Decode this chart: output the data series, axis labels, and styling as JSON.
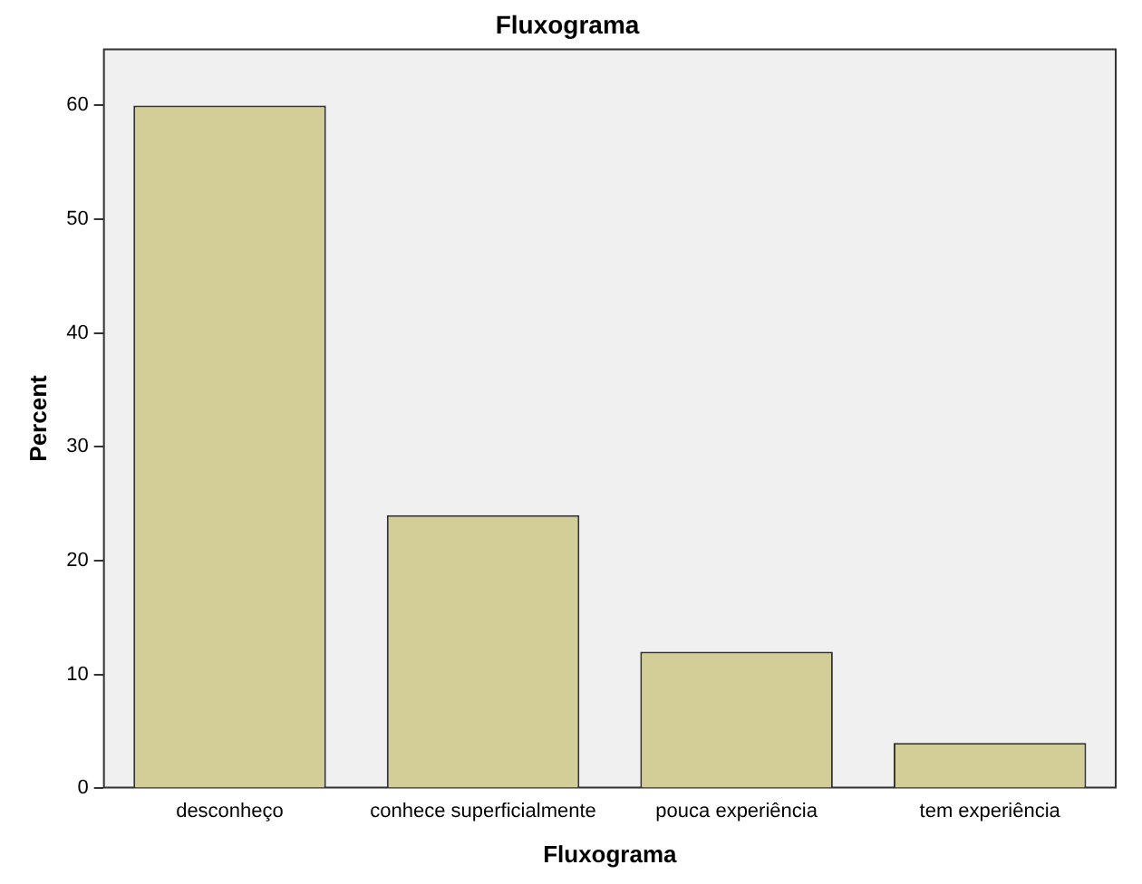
{
  "chart_data": {
    "type": "bar",
    "title": "Fluxograma",
    "xlabel": "Fluxograma",
    "ylabel": "Percent",
    "categories": [
      "desconheço",
      "conhece superficialmente",
      "pouca experiência",
      "tem experiência"
    ],
    "values": [
      60,
      24,
      12,
      4
    ],
    "color": "#d3ce97",
    "ylim": [
      0,
      65
    ],
    "yticks": [
      0,
      10,
      20,
      30,
      40,
      50,
      60
    ],
    "grid": false,
    "legend": false
  }
}
